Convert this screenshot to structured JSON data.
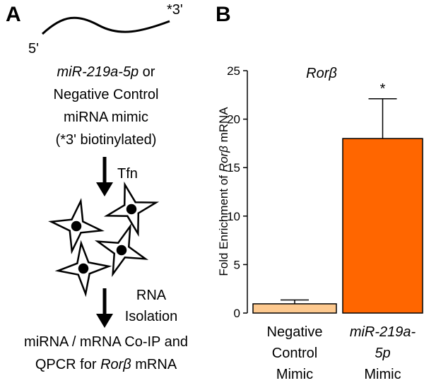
{
  "panel_a": {
    "label": "A",
    "end_5": "5'",
    "end_3": "*3'",
    "lines": [
      [
        "miR-219a-5p",
        " or"
      ],
      [
        "Negative Control"
      ],
      [
        "miRNA mimic"
      ],
      [
        "(*3' biotinylated)"
      ]
    ],
    "step1": "Tfn",
    "step2": [
      "RNA",
      "Isolation"
    ],
    "result": [
      [
        "miRNA / mRNA Co-IP and"
      ],
      [
        "QPCR for ",
        "Rorβ",
        " mRNA"
      ]
    ]
  },
  "chart_data": {
    "type": "bar",
    "panel_label": "B",
    "title": "Rorβ",
    "ylabel": [
      "Fold Enrichment of ",
      "Rorβ",
      " mRNA"
    ],
    "categories": [
      [
        "Negative",
        "Control",
        "Mimic"
      ],
      [
        "miR-219a-",
        "5p",
        "Mimic"
      ]
    ],
    "values": [
      0.95,
      18
    ],
    "errors": [
      0.4,
      4.1
    ],
    "colors": [
      "#fdc98f",
      "#ff6600"
    ],
    "annotations": [
      null,
      "*"
    ],
    "ylim": [
      0,
      25
    ],
    "yticks": [
      0,
      5,
      10,
      15,
      20,
      25
    ]
  }
}
